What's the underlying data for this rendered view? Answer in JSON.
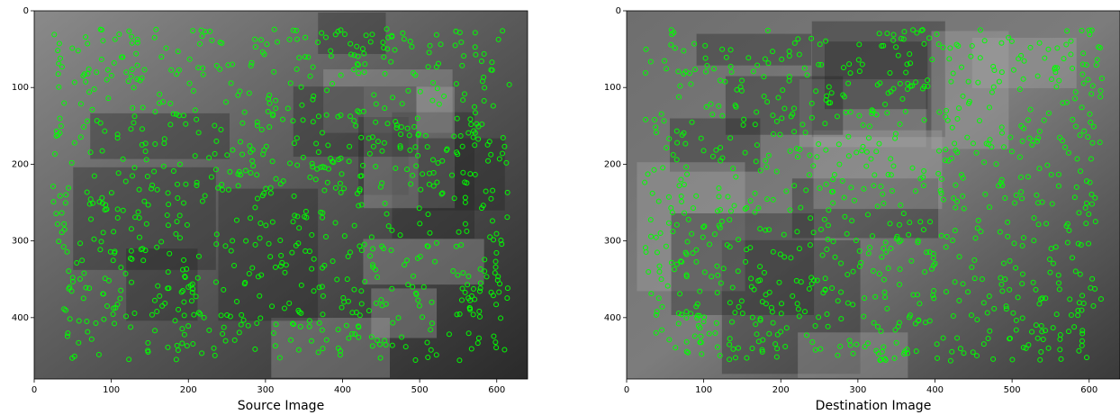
{
  "chart_data": [
    {
      "type": "image",
      "xlabel": "Source Image",
      "xlim": [
        0,
        640
      ],
      "ylim": [
        480,
        0
      ],
      "xticks": [
        0,
        100,
        200,
        300,
        400,
        500,
        600
      ],
      "yticks": [
        0,
        100,
        200,
        300,
        400
      ]
    },
    {
      "type": "image",
      "xlabel": "Destination Image",
      "xlim": [
        0,
        640
      ],
      "ylim": [
        480,
        0
      ],
      "xticks": [
        0,
        100,
        200,
        300,
        400,
        500,
        600
      ],
      "yticks": [
        0,
        100,
        200,
        300,
        400
      ]
    }
  ]
}
